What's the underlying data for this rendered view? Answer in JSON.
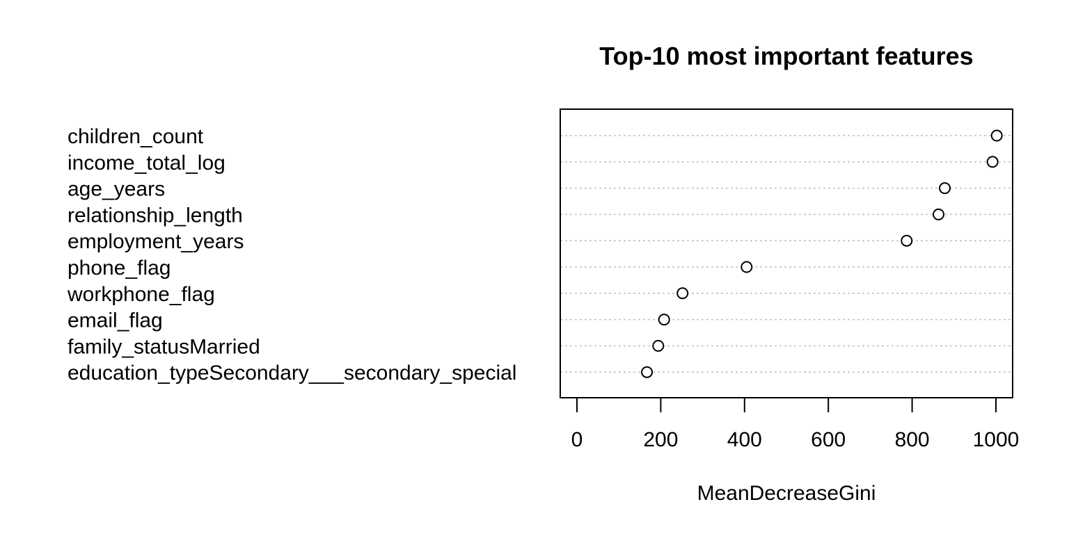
{
  "chart_data": {
    "type": "scatter",
    "title": "Top-10 most important features",
    "xlabel": "MeanDecreaseGini",
    "ylabel": "",
    "categories": [
      "children_count",
      "income_total_log",
      "age_years",
      "relationship_length",
      "employment_years",
      "phone_flag",
      "workphone_flag",
      "email_flag",
      "family_statusMarried",
      "education_typeSecondary___secondary_special"
    ],
    "values": [
      1002,
      992,
      878,
      863,
      787,
      405,
      252,
      208,
      194,
      167
    ],
    "xticks": [
      "0",
      "200",
      "400",
      "600",
      "800",
      "1000"
    ],
    "xlim": [
      -40,
      1040
    ],
    "grid": "horizontal dotted",
    "marker": "open-circle",
    "colors": {
      "marker_stroke": "#000000",
      "marker_fill": "#ffffff",
      "grid": "#bebebe",
      "axis": "#000000"
    }
  }
}
